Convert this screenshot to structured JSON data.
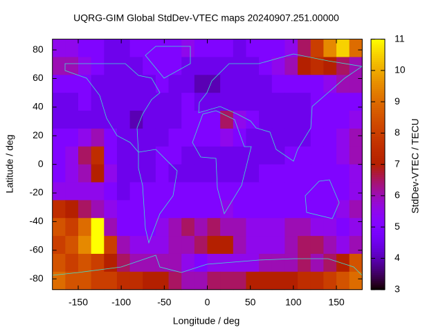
{
  "chart_data": {
    "type": "heatmap",
    "title": "UQRG-GIM Global StdDev-VTEC maps 20240907.251.00000",
    "x_label": "Longitude / deg",
    "y_label": "Latitude / deg",
    "z_label": "StdDev-VTEC / TECU",
    "xlim": [
      -180,
      180
    ],
    "ylim": [
      -87.5,
      87.5
    ],
    "zlim": [
      3,
      11
    ],
    "xticks": [
      -150,
      -100,
      -50,
      0,
      50,
      100,
      150
    ],
    "yticks": [
      -80,
      -60,
      -40,
      -20,
      0,
      20,
      40,
      60,
      80
    ],
    "zticks": [
      3,
      4,
      5,
      6,
      7,
      8,
      9,
      10,
      11
    ],
    "x": [
      -172.5,
      -157.5,
      -142.5,
      -127.5,
      -112.5,
      -97.5,
      -82.5,
      -67.5,
      -52.5,
      -37.5,
      -22.5,
      -7.5,
      7.5,
      22.5,
      37.5,
      52.5,
      67.5,
      82.5,
      97.5,
      112.5,
      127.5,
      142.5,
      157.5,
      172.5
    ],
    "y": [
      81.25,
      68.75,
      56.25,
      43.75,
      31.25,
      18.75,
      6.25,
      -6.25,
      -18.75,
      -31.25,
      -43.75,
      -56.25,
      -68.75,
      -81.25
    ],
    "z": [
      [
        5.5,
        5.5,
        5,
        5,
        4.5,
        4.5,
        5,
        5,
        5,
        5,
        5.5,
        5,
        5,
        5,
        4.5,
        5,
        5,
        5,
        5.5,
        6.5,
        8,
        9.5,
        10.5,
        9
      ],
      [
        6,
        6,
        5.5,
        5,
        4.5,
        4.5,
        4.5,
        5,
        5,
        5,
        4.5,
        4.5,
        4.5,
        4.5,
        4.5,
        4.5,
        5,
        5.5,
        6,
        7,
        7.5,
        7,
        6.5,
        6
      ],
      [
        5,
        5,
        5,
        4.5,
        4.5,
        4.5,
        4.5,
        4.5,
        5,
        4.5,
        4.5,
        4,
        4,
        4.5,
        4.5,
        4.5,
        4.5,
        5,
        5,
        5,
        5,
        5.5,
        6,
        6
      ],
      [
        4.5,
        4.5,
        5,
        4.5,
        4.5,
        4.5,
        4.5,
        4.5,
        4.5,
        4.5,
        5,
        4.5,
        4.5,
        4.5,
        4.5,
        4.5,
        4.5,
        4.5,
        4.5,
        4.5,
        5,
        5,
        5,
        5
      ],
      [
        4.5,
        4.5,
        4.5,
        4.5,
        4.5,
        4.5,
        4,
        4.5,
        4.5,
        4.5,
        5,
        5,
        5,
        6.5,
        5.5,
        5,
        4.5,
        4.5,
        4.5,
        4.5,
        5,
        5,
        5,
        5.5
      ],
      [
        5,
        5,
        5.5,
        6,
        5,
        4.5,
        4.5,
        4.5,
        4.5,
        5,
        5,
        5,
        5,
        5.5,
        5,
        4.5,
        4.5,
        4.5,
        4.5,
        4.5,
        5,
        5,
        5.5,
        6
      ],
      [
        5,
        5.5,
        6.5,
        7.5,
        5,
        4.5,
        4.5,
        4.5,
        5,
        5,
        4.5,
        4.5,
        4.5,
        4.5,
        4.5,
        4.5,
        4.5,
        4.5,
        5,
        5,
        5,
        5,
        5.5,
        6
      ],
      [
        5,
        5.5,
        6,
        7,
        5.5,
        4.5,
        4.5,
        4.5,
        5,
        4.5,
        4.5,
        4.5,
        4.5,
        4.5,
        4.5,
        4.5,
        5,
        5,
        5,
        5,
        5,
        5,
        5,
        5.5
      ],
      [
        5.5,
        5.5,
        5.5,
        5.5,
        5,
        4.5,
        5,
        5,
        5,
        5,
        5,
        5,
        5,
        5,
        5,
        5,
        5,
        5,
        5,
        5,
        5,
        5,
        5,
        5.5
      ],
      [
        7.5,
        7,
        6.5,
        6,
        5.5,
        5,
        5,
        5,
        5,
        5,
        5,
        5,
        5,
        5.5,
        5,
        5,
        5,
        5,
        5,
        5,
        5,
        5,
        5.5,
        6
      ],
      [
        8.5,
        8,
        9,
        11,
        6,
        5,
        5,
        5,
        5.5,
        6,
        6.5,
        6,
        6.5,
        6,
        6,
        5.5,
        5.5,
        5.5,
        6,
        6,
        5.5,
        5.5,
        5,
        5.5
      ],
      [
        8,
        8.5,
        9.5,
        11,
        8,
        6,
        5.5,
        5.5,
        5.5,
        6,
        6,
        6.5,
        7,
        7,
        6,
        5.5,
        5.5,
        5.5,
        6,
        6.5,
        6.5,
        6,
        5.5,
        6
      ],
      [
        8.5,
        8,
        8.5,
        8,
        7,
        6.5,
        6,
        6,
        6,
        6,
        5.5,
        5,
        5.5,
        5.5,
        5.5,
        5.5,
        6,
        6,
        6,
        6.5,
        6,
        6.5,
        7,
        8.5
      ],
      [
        9,
        8.5,
        8.5,
        8,
        8,
        7.5,
        7.5,
        7,
        7,
        6.5,
        6,
        6,
        6.5,
        6.5,
        6.5,
        7,
        7,
        7,
        7,
        7.5,
        7.5,
        8,
        8.5,
        9
      ]
    ]
  }
}
